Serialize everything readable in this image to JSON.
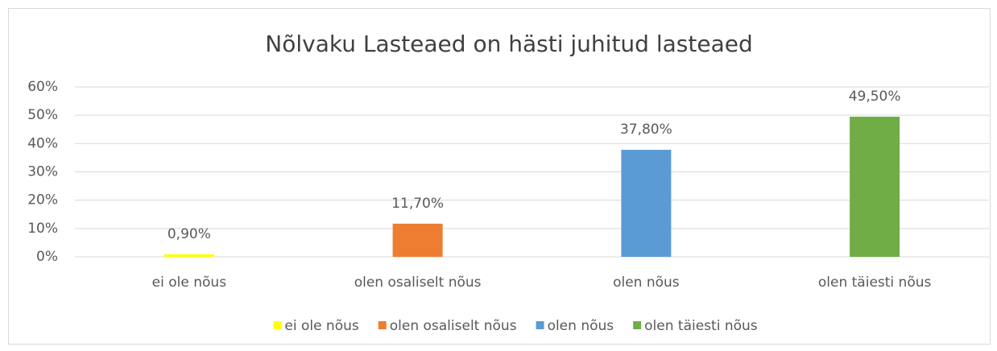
{
  "chart_data": {
    "type": "bar",
    "title": "Nõlvaku Lasteaed on hästi juhitud lasteaed",
    "categories": [
      "ei ole nõus",
      "olen osaliselt nõus",
      "olen nõus",
      "olen täiesti nõus"
    ],
    "values": [
      0.9,
      11.7,
      37.8,
      49.5
    ],
    "value_labels": [
      "0,90%",
      "11,70%",
      "37,80%",
      "49,50%"
    ],
    "colors": [
      "#ffff00",
      "#ed7d31",
      "#5b9bd5",
      "#70ad47"
    ],
    "ylim": [
      0,
      60
    ],
    "yticks": [
      {
        "value": 0,
        "label": "0%"
      },
      {
        "value": 10,
        "label": "10%"
      },
      {
        "value": 20,
        "label": "20%"
      },
      {
        "value": 30,
        "label": "30%"
      },
      {
        "value": 40,
        "label": "40%"
      },
      {
        "value": 50,
        "label": "50%"
      },
      {
        "value": 60,
        "label": "60%"
      }
    ],
    "grid": true,
    "legend": "bottom"
  }
}
